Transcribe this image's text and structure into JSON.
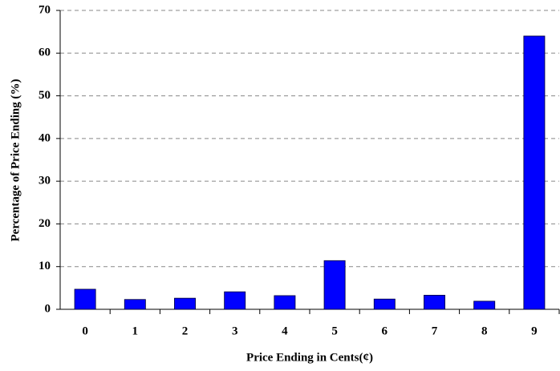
{
  "chart_data": {
    "type": "bar",
    "x_label": "Price Ending in Cents(¢)",
    "y_label": "Percentage of Price Ending (%)",
    "categories": [
      "0",
      "1",
      "2",
      "3",
      "4",
      "5",
      "6",
      "7",
      "8",
      "9"
    ],
    "values": [
      4.7,
      2.3,
      2.6,
      4.1,
      3.2,
      11.4,
      2.4,
      3.3,
      1.9,
      64.0
    ],
    "color": "#0000ff",
    "ylim": [
      0,
      70
    ],
    "yticks": [
      0,
      10,
      20,
      30,
      40,
      50,
      60,
      70
    ],
    "grid": true
  }
}
